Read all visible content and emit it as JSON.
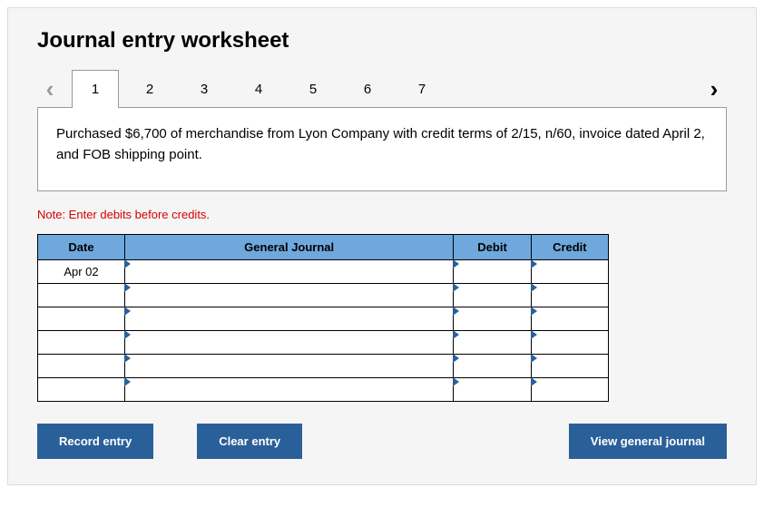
{
  "title": "Journal entry worksheet",
  "nav": {
    "prev_glyph": "‹",
    "next_glyph": "›"
  },
  "tabs": {
    "items": [
      "1",
      "2",
      "3",
      "4",
      "5",
      "6",
      "7"
    ],
    "active_index": 0
  },
  "transaction_text": "Purchased $6,700 of merchandise from Lyon Company with credit terms of 2/15, n/60, invoice dated April 2, and FOB shipping point.",
  "note": "Note: Enter debits before credits.",
  "table": {
    "headers": {
      "date": "Date",
      "journal": "General Journal",
      "debit": "Debit",
      "credit": "Credit"
    },
    "rows": [
      {
        "date": "Apr 02",
        "journal": "",
        "debit": "",
        "credit": ""
      },
      {
        "date": "",
        "journal": "",
        "debit": "",
        "credit": ""
      },
      {
        "date": "",
        "journal": "",
        "debit": "",
        "credit": ""
      },
      {
        "date": "",
        "journal": "",
        "debit": "",
        "credit": ""
      },
      {
        "date": "",
        "journal": "",
        "debit": "",
        "credit": ""
      },
      {
        "date": "",
        "journal": "",
        "debit": "",
        "credit": ""
      }
    ],
    "header_bg": "#6fa8dc",
    "marker_color": "#2a6099"
  },
  "buttons": {
    "record": "Record entry",
    "clear": "Clear entry",
    "view": "View general journal"
  }
}
